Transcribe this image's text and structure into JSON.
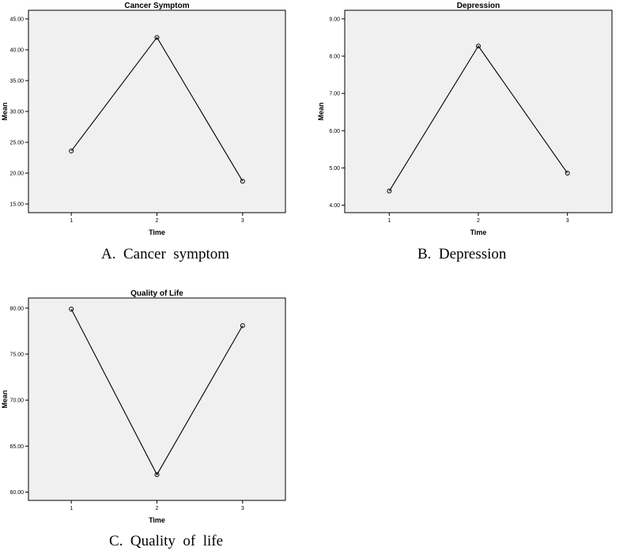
{
  "chart_data": [
    {
      "type": "line",
      "title": "Cancer Symptom",
      "xlabel": "Time",
      "ylabel": "Mean",
      "x": [
        1,
        2,
        3
      ],
      "values": [
        23.6,
        42.0,
        18.7
      ],
      "yticks": [
        "15.00",
        "20.00",
        "25.00",
        "30.00",
        "35.00",
        "40.00",
        "45.00"
      ],
      "ylim": [
        13.6,
        46.4
      ],
      "grid": false,
      "caption": "A.  Cancer  symptom",
      "colors": {
        "plot_bg": "#f0f0f0",
        "line": "#000000"
      }
    },
    {
      "type": "line",
      "title": "Depression",
      "xlabel": "Time",
      "ylabel": "Mean",
      "x": [
        1,
        2,
        3
      ],
      "values": [
        4.38,
        8.27,
        4.86
      ],
      "yticks": [
        "4.00",
        "5.00",
        "6.00",
        "7.00",
        "8.00",
        "9.00"
      ],
      "ylim": [
        3.8,
        9.23
      ],
      "grid": false,
      "caption": "B.  Depression",
      "colors": {
        "plot_bg": "#f0f0f0",
        "line": "#000000"
      }
    },
    {
      "type": "line",
      "title": "Quality of Life",
      "xlabel": "Time",
      "ylabel": "Mean",
      "x": [
        1,
        2,
        3
      ],
      "values": [
        79.9,
        61.9,
        78.1
      ],
      "yticks": [
        "60.00",
        "65.00",
        "70.00",
        "75.00",
        "80.00"
      ],
      "ylim": [
        59.1,
        81.1
      ],
      "grid": false,
      "caption": "C.  Quality  of  life",
      "colors": {
        "plot_bg": "#f0f0f0",
        "line": "#000000"
      }
    }
  ]
}
